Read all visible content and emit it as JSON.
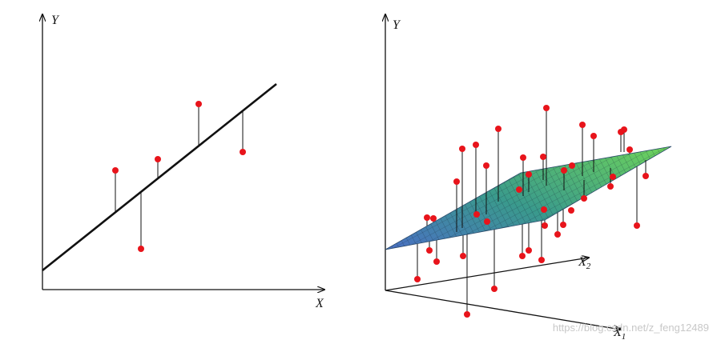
{
  "left": {
    "y_label": "Y",
    "x_label": "X"
  },
  "right": {
    "y_label": "Y",
    "x1_label": "X",
    "x1_sub": "1",
    "x2_label": "X",
    "x2_sub": "2"
  },
  "watermark": "https://blog.csdn.net/z_feng12489"
}
